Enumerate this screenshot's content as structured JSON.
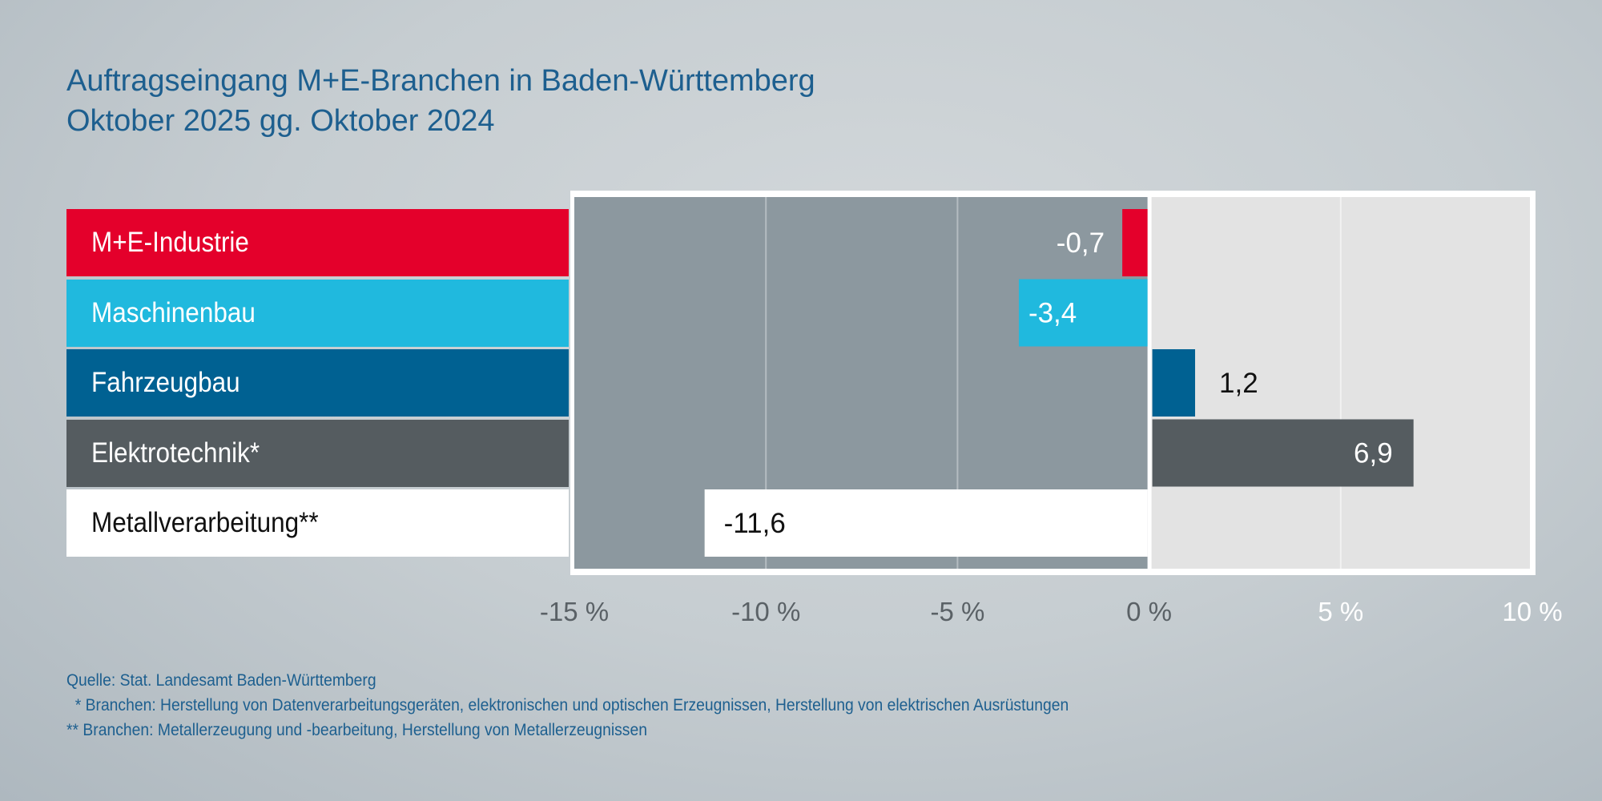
{
  "title": [
    "Auftragseingang M+E-Branchen in Baden-Württemberg",
    "Oktober 2025 gg. Oktober 2024"
  ],
  "chart_data": {
    "type": "bar",
    "orientation": "horizontal",
    "categories": [
      "M+E-Industrie",
      "Maschinenbau",
      "Fahrzeugbau",
      "Elektrotechnik*",
      "Metallverarbeitung**"
    ],
    "values": [
      -0.7,
      -3.4,
      1.2,
      6.9,
      -11.6
    ],
    "value_labels": [
      "-0,7",
      "-3,4",
      "1,2",
      "6,9",
      "-11,6"
    ],
    "colors": [
      "#e4002b",
      "#20b9de",
      "#006192",
      "#555c60",
      "#ffffff"
    ],
    "xlim": [
      -15,
      10
    ],
    "ticks": [
      -15,
      -10,
      -5,
      0,
      5,
      10
    ],
    "tick_labels": [
      "-15 %",
      "-10 %",
      "-5 %",
      "0 %",
      "5 %",
      "10 %"
    ],
    "grid": true,
    "negative_area_color": "#8c989f",
    "positive_area_color": "#e3e3e3"
  },
  "footnotes": [
    "Quelle: Stat. Landesamt Baden-Württemberg",
    "  * Branchen: Herstellung von Datenverarbeitungsgeräten, elektronischen und optischen Erzeugnissen, Herstellung von elektrischen Ausrüstungen",
    "** Branchen: Metallerzeugung und -bearbeitung, Herstellung von Metallerzeugnissen"
  ]
}
